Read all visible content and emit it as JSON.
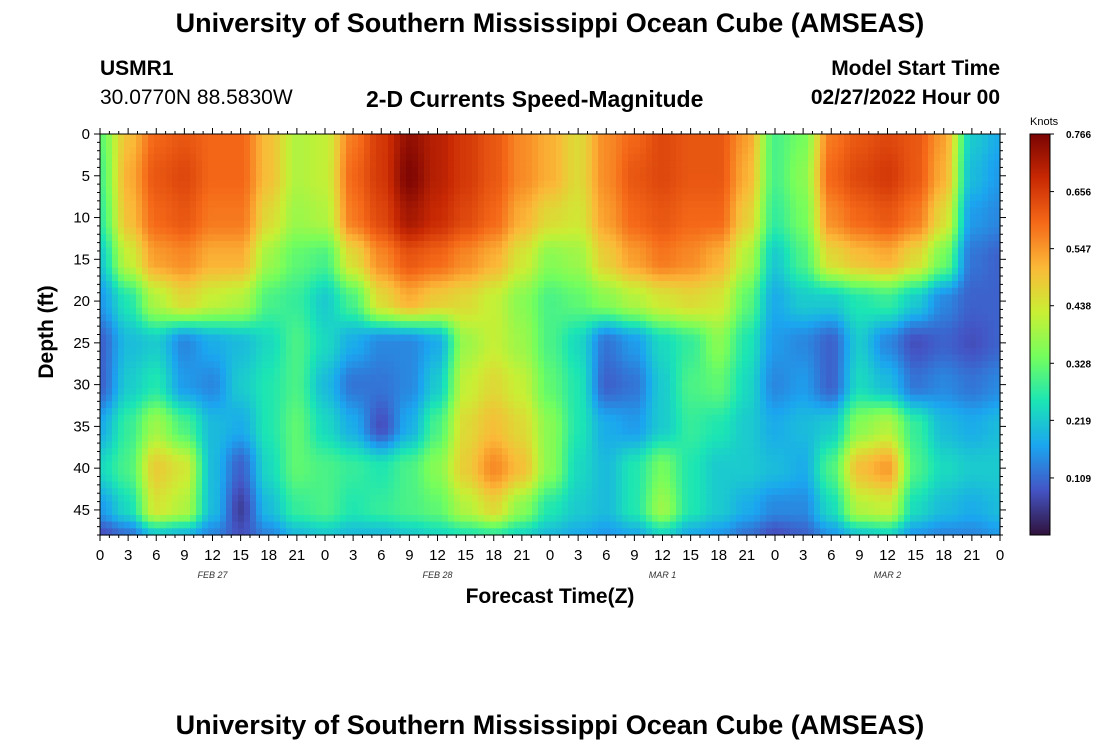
{
  "header": {
    "title": "University of Southern Mississippi Ocean Cube (AMSEAS)",
    "station": "USMR1",
    "coords": "30.0770N  88.5830W",
    "subtitle": "2-D Currents Speed-Magnitude",
    "model_start_label": "Model Start Time",
    "model_start_value": "02/27/2022 Hour 00"
  },
  "footer": {
    "title": "University of Southern Mississippi Ocean Cube (AMSEAS)"
  },
  "colorbar": {
    "unit_label": "Knots",
    "ticks": [
      0.766,
      0.656,
      0.547,
      0.438,
      0.328,
      0.219,
      0.109
    ],
    "range": [
      0.0,
      0.766
    ],
    "colors": [
      "#30123b",
      "#4454c4",
      "#1ba5f0",
      "#1be5b5",
      "#74fe5d",
      "#c9ef34",
      "#fbb938",
      "#f56918",
      "#c92903",
      "#7a0403"
    ]
  },
  "chart_data": {
    "type": "heatmap",
    "title": "2-D Currents Speed-Magnitude",
    "xlabel": "Forecast Time(Z)",
    "ylabel": "Depth (ft)",
    "x_ticks": [
      "0",
      "3",
      "6",
      "9",
      "12",
      "15",
      "18",
      "21",
      "0",
      "3",
      "6",
      "9",
      "12",
      "15",
      "18",
      "21",
      "0",
      "3",
      "6",
      "9",
      "12",
      "15",
      "18",
      "21",
      "0",
      "3",
      "6",
      "9",
      "12",
      "15",
      "18",
      "21",
      "0"
    ],
    "x_hours": [
      0,
      3,
      6,
      9,
      12,
      15,
      18,
      21,
      24,
      27,
      30,
      33,
      36,
      39,
      42,
      45,
      48,
      51,
      54,
      57,
      60,
      63,
      66,
      69,
      72,
      75,
      78,
      81,
      84,
      87,
      90,
      93,
      96
    ],
    "x_range_hours": [
      0,
      96
    ],
    "date_labels": [
      {
        "text": "FEB 27",
        "hour": 12
      },
      {
        "text": "FEB 28",
        "hour": 36
      },
      {
        "text": "MAR 1",
        "hour": 60
      },
      {
        "text": "MAR 2",
        "hour": 84
      }
    ],
    "y_ticks": [
      0,
      5,
      10,
      15,
      20,
      25,
      30,
      35,
      40,
      45
    ],
    "y_range_ft": [
      0,
      48
    ],
    "depths_ft": [
      0,
      5,
      10,
      15,
      20,
      25,
      30,
      35,
      40,
      45,
      48
    ],
    "hours": [
      0,
      3,
      6,
      9,
      12,
      15,
      18,
      21,
      24,
      27,
      30,
      33,
      36,
      39,
      42,
      45,
      48,
      51,
      54,
      57,
      60,
      63,
      66,
      69,
      72,
      75,
      78,
      81,
      84,
      87,
      90,
      93,
      96
    ],
    "values": [
      [
        0.32,
        0.5,
        0.6,
        0.62,
        0.6,
        0.6,
        0.5,
        0.4,
        0.42,
        0.58,
        0.66,
        0.74,
        0.7,
        0.66,
        0.62,
        0.56,
        0.52,
        0.46,
        0.56,
        0.6,
        0.64,
        0.62,
        0.62,
        0.54,
        0.3,
        0.34,
        0.58,
        0.62,
        0.64,
        0.62,
        0.54,
        0.22,
        0.18
      ],
      [
        0.3,
        0.52,
        0.62,
        0.64,
        0.6,
        0.6,
        0.5,
        0.4,
        0.42,
        0.6,
        0.66,
        0.76,
        0.7,
        0.66,
        0.62,
        0.56,
        0.52,
        0.46,
        0.56,
        0.62,
        0.64,
        0.62,
        0.62,
        0.52,
        0.3,
        0.36,
        0.6,
        0.64,
        0.66,
        0.62,
        0.52,
        0.2,
        0.16
      ],
      [
        0.28,
        0.5,
        0.6,
        0.62,
        0.58,
        0.58,
        0.46,
        0.38,
        0.4,
        0.58,
        0.64,
        0.72,
        0.68,
        0.64,
        0.6,
        0.52,
        0.46,
        0.44,
        0.54,
        0.6,
        0.62,
        0.6,
        0.6,
        0.48,
        0.28,
        0.34,
        0.56,
        0.6,
        0.62,
        0.58,
        0.46,
        0.16,
        0.14
      ],
      [
        0.22,
        0.42,
        0.54,
        0.56,
        0.52,
        0.52,
        0.38,
        0.32,
        0.3,
        0.46,
        0.56,
        0.62,
        0.6,
        0.56,
        0.52,
        0.44,
        0.36,
        0.38,
        0.48,
        0.54,
        0.58,
        0.56,
        0.52,
        0.4,
        0.22,
        0.3,
        0.46,
        0.5,
        0.52,
        0.46,
        0.34,
        0.12,
        0.1
      ],
      [
        0.16,
        0.26,
        0.4,
        0.46,
        0.42,
        0.4,
        0.3,
        0.28,
        0.22,
        0.3,
        0.46,
        0.52,
        0.48,
        0.46,
        0.42,
        0.36,
        0.3,
        0.32,
        0.36,
        0.4,
        0.44,
        0.46,
        0.44,
        0.32,
        0.18,
        0.22,
        0.22,
        0.26,
        0.28,
        0.22,
        0.14,
        0.1,
        0.1
      ],
      [
        0.1,
        0.2,
        0.22,
        0.14,
        0.18,
        0.2,
        0.24,
        0.3,
        0.24,
        0.18,
        0.14,
        0.14,
        0.18,
        0.38,
        0.42,
        0.38,
        0.3,
        0.24,
        0.12,
        0.16,
        0.24,
        0.28,
        0.36,
        0.26,
        0.16,
        0.14,
        0.1,
        0.22,
        0.14,
        0.08,
        0.1,
        0.08,
        0.1
      ],
      [
        0.1,
        0.22,
        0.26,
        0.16,
        0.14,
        0.22,
        0.26,
        0.3,
        0.2,
        0.12,
        0.12,
        0.14,
        0.22,
        0.42,
        0.46,
        0.42,
        0.32,
        0.26,
        0.1,
        0.12,
        0.22,
        0.3,
        0.32,
        0.24,
        0.14,
        0.16,
        0.1,
        0.24,
        0.2,
        0.12,
        0.14,
        0.12,
        0.14
      ],
      [
        0.18,
        0.28,
        0.38,
        0.3,
        0.2,
        0.18,
        0.26,
        0.32,
        0.24,
        0.18,
        0.08,
        0.18,
        0.3,
        0.46,
        0.5,
        0.46,
        0.36,
        0.26,
        0.18,
        0.16,
        0.22,
        0.28,
        0.26,
        0.22,
        0.18,
        0.2,
        0.22,
        0.36,
        0.4,
        0.28,
        0.2,
        0.18,
        0.2
      ],
      [
        0.24,
        0.3,
        0.48,
        0.44,
        0.2,
        0.1,
        0.24,
        0.32,
        0.3,
        0.28,
        0.26,
        0.3,
        0.36,
        0.48,
        0.56,
        0.5,
        0.36,
        0.24,
        0.2,
        0.26,
        0.34,
        0.26,
        0.22,
        0.22,
        0.2,
        0.18,
        0.3,
        0.5,
        0.54,
        0.3,
        0.24,
        0.22,
        0.22
      ],
      [
        0.16,
        0.24,
        0.44,
        0.4,
        0.2,
        0.06,
        0.2,
        0.28,
        0.3,
        0.26,
        0.28,
        0.3,
        0.32,
        0.4,
        0.46,
        0.36,
        0.26,
        0.22,
        0.2,
        0.26,
        0.38,
        0.26,
        0.22,
        0.18,
        0.14,
        0.14,
        0.24,
        0.4,
        0.42,
        0.24,
        0.2,
        0.18,
        0.2
      ],
      [
        0.08,
        0.12,
        0.22,
        0.2,
        0.14,
        0.08,
        0.14,
        0.2,
        0.22,
        0.2,
        0.2,
        0.22,
        0.24,
        0.26,
        0.28,
        0.24,
        0.2,
        0.18,
        0.16,
        0.18,
        0.24,
        0.18,
        0.16,
        0.12,
        0.08,
        0.1,
        0.16,
        0.22,
        0.24,
        0.16,
        0.14,
        0.14,
        0.16
      ]
    ],
    "colorbar_label": "Knots",
    "colorbar_range": [
      0.0,
      0.766
    ]
  }
}
